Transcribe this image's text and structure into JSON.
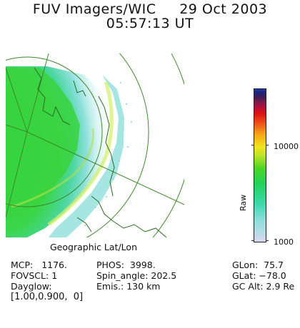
{
  "header": {
    "instrument": "FUV Imagers/WIC",
    "date": "29 Oct 2003",
    "time": "05:57:13 UT"
  },
  "image": {
    "caption": "Geographic Lat/Lon"
  },
  "colorbar": {
    "label": "Raw",
    "max_label": "10000",
    "min_label": "1000"
  },
  "info": {
    "mcp_label": "MCP:",
    "mcp_value": "1176.",
    "fovscl_label": "FOVSCL:",
    "fovscl_value": "1",
    "dayglow_label": "Dayglow:",
    "dayglow_value": "[1.00,0.900,  0]",
    "phos_label": "PHOS:",
    "phos_value": "3998.",
    "spin_label": "Spin_angle:",
    "spin_value": "202.5",
    "emis_label": "Emis.:",
    "emis_value": "130 km",
    "glon_label": "GLon:",
    "glon_value": "75.7",
    "glat_label": "GLat:",
    "glat_value": "−78.0",
    "gcalt_label": "GC Alt:",
    "gcalt_value": "2.9 Re"
  },
  "colors": {
    "grid_line": "#3b8a2a",
    "coast_line": "#2d6b22",
    "aurora_bright": "#22d25a",
    "aurora_edge": "#7fdbd5"
  }
}
